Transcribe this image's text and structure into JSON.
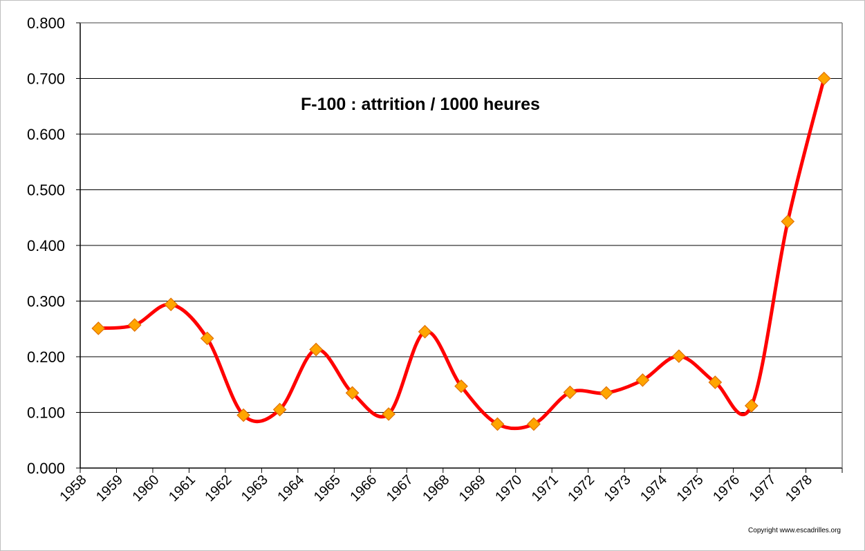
{
  "chart_data": {
    "type": "line",
    "title": "F-100 : attrition / 1000 heures",
    "xlabel": "",
    "ylabel": "",
    "categories": [
      "1958",
      "1959",
      "1960",
      "1961",
      "1962",
      "1963",
      "1964",
      "1965",
      "1966",
      "1967",
      "1968",
      "1969",
      "1970",
      "1971",
      "1972",
      "1973",
      "1974",
      "1975",
      "1976",
      "1977",
      "1978"
    ],
    "series": [
      {
        "values": [
          0.251,
          0.257,
          0.294,
          0.233,
          0.095,
          0.105,
          0.213,
          0.135,
          0.097,
          0.245,
          0.147,
          0.079,
          0.079,
          0.136,
          0.135,
          0.158,
          0.201,
          0.154,
          0.112,
          0.443,
          0.7
        ],
        "line_color": "#ff0000",
        "marker": "diamond",
        "marker_color": "#ffa500",
        "smoothed": true
      }
    ],
    "ylim": [
      0,
      0.8
    ],
    "yticks": [
      "0.000",
      "0.100",
      "0.200",
      "0.300",
      "0.400",
      "0.500",
      "0.600",
      "0.700",
      "0.800"
    ],
    "grid": true,
    "legend": "none"
  },
  "copyright": "Copyright www.escadrilles.org"
}
